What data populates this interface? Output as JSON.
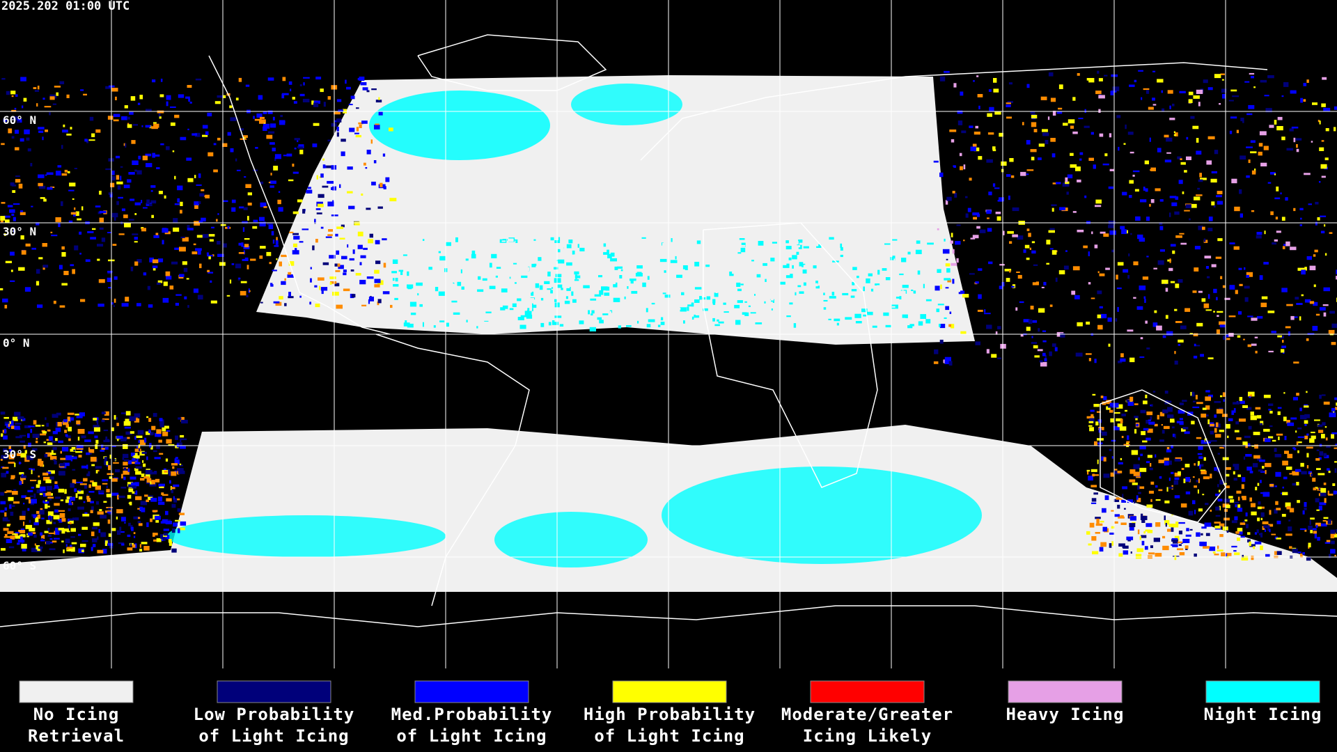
{
  "header": {
    "timestamp": "2025.202 01:00 UTC"
  },
  "latitude_labels": [
    "60° N",
    "30° N",
    "0° N",
    "30° S",
    "60° S"
  ],
  "legend": [
    {
      "color": "#f0f0f0",
      "label": [
        "No Icing",
        "Retrieval"
      ]
    },
    {
      "color": "#00007a",
      "label": [
        "Low Probability",
        "of Light Icing"
      ]
    },
    {
      "color": "#0000ff",
      "label": [
        "Med.Probability",
        "of Light Icing"
      ]
    },
    {
      "color": "#ffff00",
      "label": [
        "High Probability",
        "of Light Icing"
      ]
    },
    {
      "color": "#ff0000",
      "label": [
        "Moderate/Greater",
        "Icing Likely"
      ]
    },
    {
      "color": "#e6a0e6",
      "label": [
        "Heavy Icing"
      ]
    },
    {
      "color": "#00ffff",
      "label": [
        "Night Icing"
      ]
    }
  ]
}
